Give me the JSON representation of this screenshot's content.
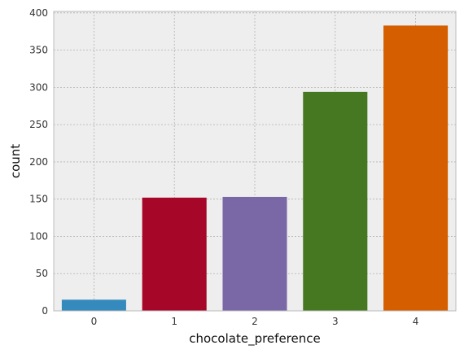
{
  "chart_data": {
    "type": "bar",
    "xlabel": "chocolate_preference",
    "ylabel": "count",
    "categories": [
      "0",
      "1",
      "2",
      "3",
      "4"
    ],
    "values": [
      15,
      152,
      153,
      294,
      383
    ],
    "ylim": [
      0,
      402
    ],
    "yticks": [
      0,
      50,
      100,
      150,
      200,
      250,
      300,
      350,
      400
    ],
    "grid": true,
    "legend": "none",
    "colors": [
      "#348ABD",
      "#A60628",
      "#7A68A6",
      "#467821",
      "#D55E00"
    ],
    "background": "#EEEEEE"
  }
}
